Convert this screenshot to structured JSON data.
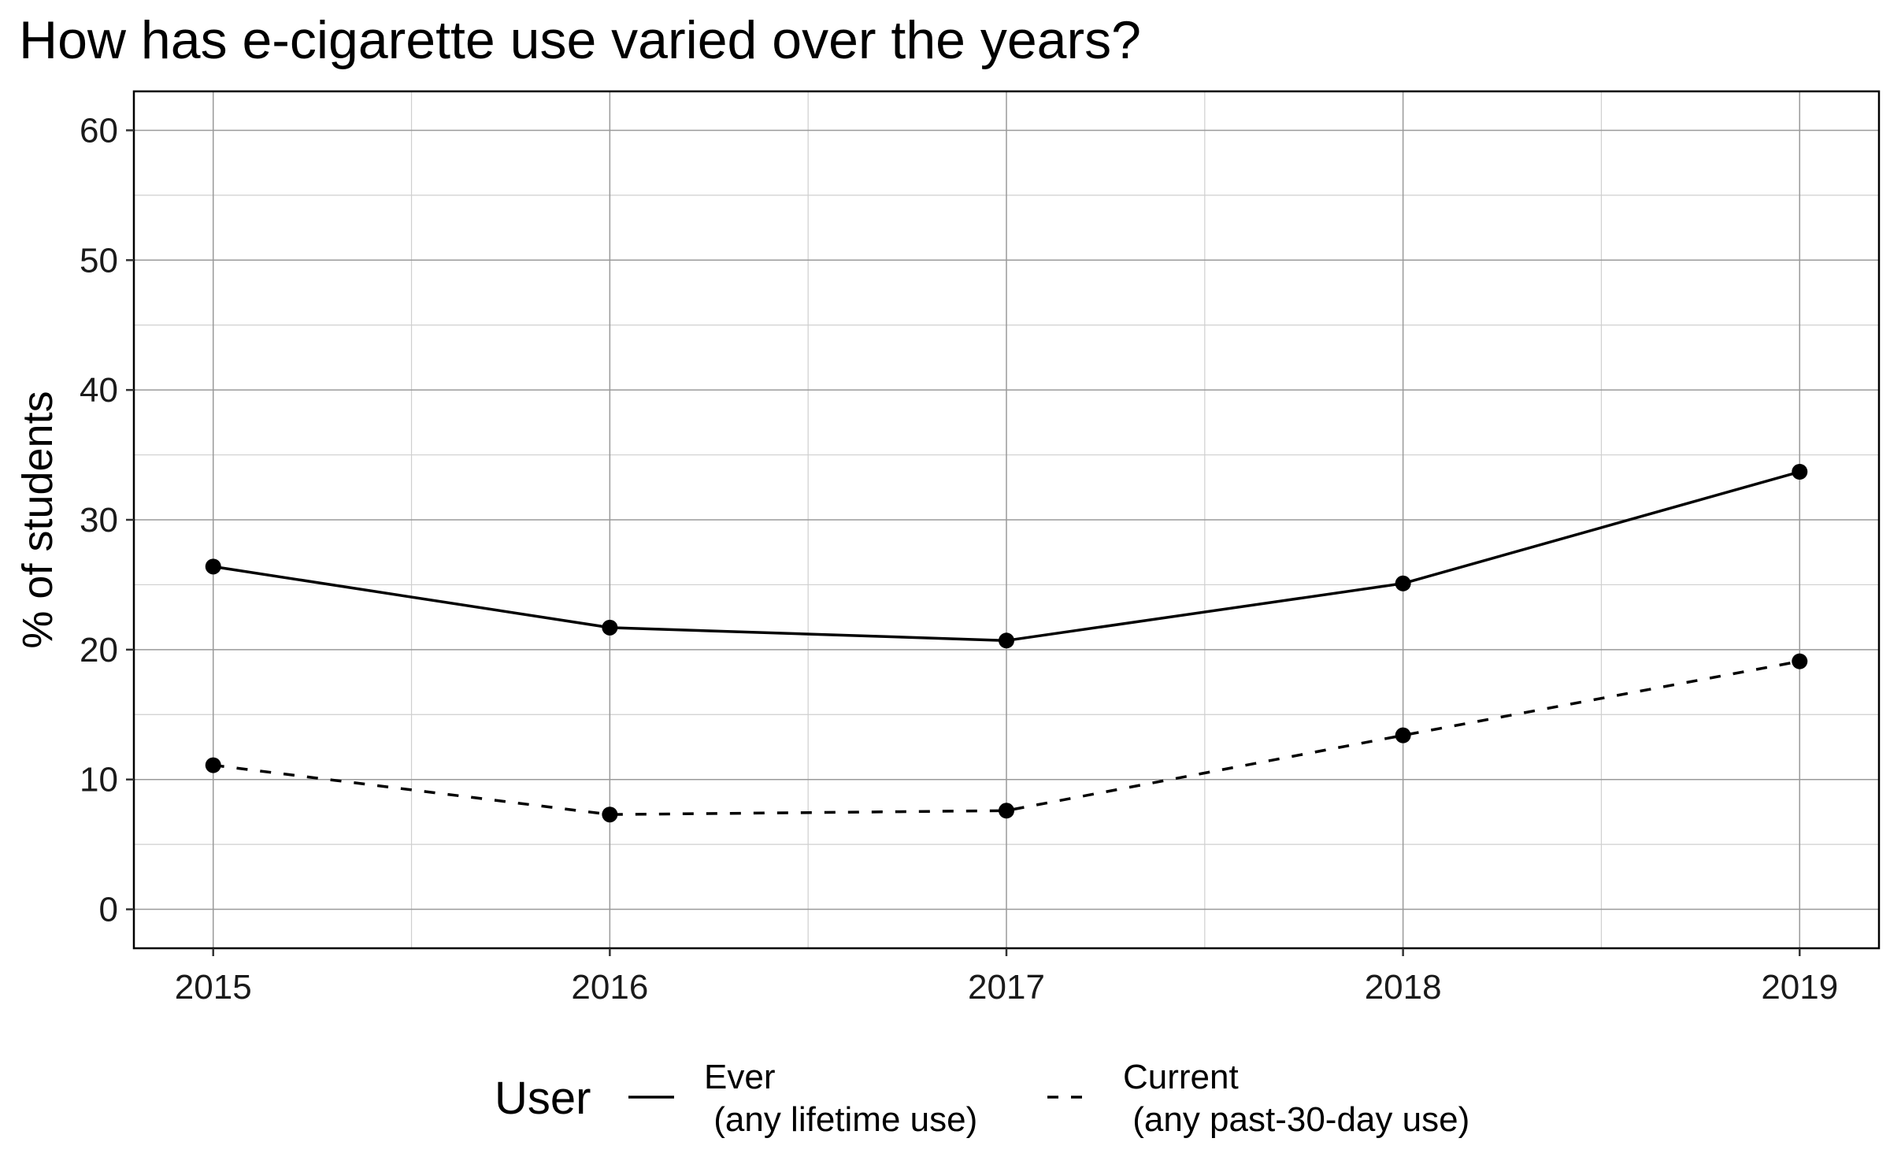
{
  "chart_data": {
    "type": "line",
    "title": "How has e-cigarette use varied over the years?",
    "xlabel": "",
    "ylabel": "% of students",
    "x": [
      2015,
      2016,
      2017,
      2018,
      2019
    ],
    "x_tick_labels": [
      "2015",
      "2016",
      "2017",
      "2018",
      "2019"
    ],
    "xlim": [
      2014.8,
      2019.2
    ],
    "ylim": [
      -3,
      63
    ],
    "y_ticks": [
      0,
      10,
      20,
      30,
      40,
      50,
      60
    ],
    "y_tick_labels": [
      "0",
      "10",
      "20",
      "30",
      "40",
      "50",
      "60"
    ],
    "grid": true,
    "legend_position": "bottom",
    "legend_title": "User",
    "series": [
      {
        "name": "Ever\n (any lifetime use)",
        "name_lines": [
          "Ever",
          " (any lifetime use)"
        ],
        "values": [
          26.4,
          21.7,
          20.7,
          25.1,
          33.7
        ],
        "line_style": "solid",
        "color": "#000000"
      },
      {
        "name": "Current\n (any past-30-day use)",
        "name_lines": [
          "Current",
          " (any past-30-day use)"
        ],
        "values": [
          11.1,
          7.3,
          7.6,
          13.4,
          19.1
        ],
        "line_style": "dashed",
        "color": "#000000"
      }
    ]
  }
}
